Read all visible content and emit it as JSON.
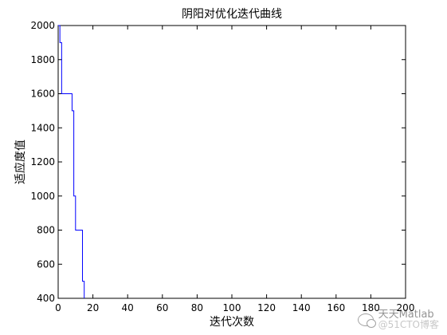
{
  "chart_data": {
    "type": "line",
    "title": "阴阳对优化迭代曲线",
    "xlabel": "迭代次数",
    "ylabel": "适应度值",
    "xlim": [
      0,
      200
    ],
    "ylim": [
      400,
      2000
    ],
    "xticks": [
      0,
      20,
      40,
      60,
      80,
      100,
      120,
      140,
      160,
      180,
      200
    ],
    "yticks": [
      400,
      600,
      800,
      1000,
      1200,
      1400,
      1600,
      1800,
      2000
    ],
    "grid": false,
    "line_color": "#0000ff",
    "series": [
      {
        "x": [
          0,
          1,
          1,
          2,
          2,
          8,
          8,
          9,
          9,
          10,
          10,
          14,
          14,
          15,
          15
        ],
        "y": [
          2000,
          2000,
          1900,
          1900,
          1600,
          1600,
          1500,
          1500,
          1000,
          1000,
          800,
          800,
          500,
          500,
          400
        ]
      }
    ]
  },
  "watermark": {
    "title": "天天Matlab",
    "subtitle": "@51CTO博客",
    "icon": "wechat-icon"
  }
}
